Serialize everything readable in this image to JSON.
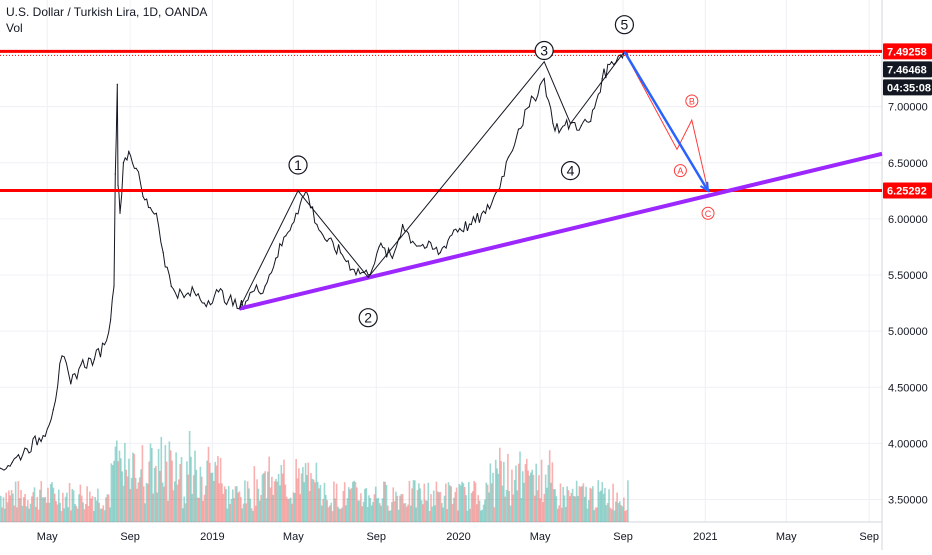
{
  "legend": {
    "symbol": "U.S. Dollar / Turkish Lira, 1D, OANDA",
    "volume": "Vol"
  },
  "colors": {
    "up": "#26a69a",
    "down": "#ef5350",
    "price_line": "#131722",
    "resistance": "#ff0000",
    "trendline": "#9c27ff",
    "projection": "#2962ff",
    "wave_abc": "#ff3b3b",
    "grid": "#eef0f4"
  },
  "price_labels": [
    {
      "text": "7.49258",
      "value": 7.49258,
      "style": "red"
    },
    {
      "text": "7.46468",
      "value": 7.46468,
      "style": "dark"
    },
    {
      "text": "04:35:08",
      "value": 7.33,
      "style": "dark"
    },
    {
      "text": "6.25292",
      "value": 6.25292,
      "style": "red"
    }
  ],
  "chart_data": {
    "type": "line",
    "title": "U.S. Dollar / Turkish Lira, 1D, OANDA",
    "ylim": [
      3.3,
      7.95
    ],
    "y_ticks": [
      "7.00000",
      "6.50000",
      "6.00000",
      "5.50000",
      "5.00000",
      "4.50000",
      "4.00000",
      "3.50000"
    ],
    "y_tick_values": [
      7.0,
      6.5,
      6.0,
      5.5,
      5.0,
      4.5,
      4.0,
      3.5
    ],
    "x_ticks": [
      "May",
      "Sep",
      "2019",
      "May",
      "Sep",
      "2020",
      "May",
      "Sep",
      "2021",
      "May",
      "Sep"
    ],
    "x_tick_dates": [
      "2018-05-01",
      "2018-09-01",
      "2019-01-01",
      "2019-05-01",
      "2019-09-01",
      "2020-01-01",
      "2020-05-01",
      "2020-09-01",
      "2021-01-01",
      "2021-05-01",
      "2021-09-01"
    ],
    "x_range": [
      "2018-02-20",
      "2021-09-20"
    ],
    "series": [
      {
        "values": [
          [
            "2018-02-20",
            3.78
          ],
          [
            "2018-03-10",
            3.83
          ],
          [
            "2018-04-01",
            3.95
          ],
          [
            "2018-04-25",
            4.07
          ],
          [
            "2018-05-10",
            4.3
          ],
          [
            "2018-05-23",
            4.78
          ],
          [
            "2018-06-05",
            4.53
          ],
          [
            "2018-06-20",
            4.7
          ],
          [
            "2018-07-10",
            4.75
          ],
          [
            "2018-07-25",
            4.88
          ],
          [
            "2018-08-03",
            5.1
          ],
          [
            "2018-08-08",
            5.4
          ],
          [
            "2018-08-10",
            6.4
          ],
          [
            "2018-08-13",
            7.2
          ],
          [
            "2018-08-14",
            6.3
          ],
          [
            "2018-08-17",
            6.05
          ],
          [
            "2018-08-22",
            6.5
          ],
          [
            "2018-08-30",
            6.6
          ],
          [
            "2018-09-10",
            6.45
          ],
          [
            "2018-09-20",
            6.2
          ],
          [
            "2018-10-01",
            6.1
          ],
          [
            "2018-10-10",
            6.05
          ],
          [
            "2018-10-20",
            5.7
          ],
          [
            "2018-11-01",
            5.4
          ],
          [
            "2018-11-20",
            5.3
          ],
          [
            "2018-12-05",
            5.35
          ],
          [
            "2018-12-20",
            5.25
          ],
          [
            "2019-01-10",
            5.35
          ],
          [
            "2019-01-25",
            5.28
          ],
          [
            "2019-02-10",
            5.2
          ],
          [
            "2019-03-01",
            5.35
          ],
          [
            "2019-03-20",
            5.4
          ],
          [
            "2019-04-05",
            5.65
          ],
          [
            "2019-04-20",
            5.85
          ],
          [
            "2019-05-05",
            6.05
          ],
          [
            "2019-05-20",
            6.25
          ],
          [
            "2019-06-05",
            5.95
          ],
          [
            "2019-06-20",
            5.8
          ],
          [
            "2019-07-10",
            5.7
          ],
          [
            "2019-07-30",
            5.55
          ],
          [
            "2019-08-20",
            5.5
          ],
          [
            "2019-09-05",
            5.75
          ],
          [
            "2019-09-25",
            5.65
          ],
          [
            "2019-10-10",
            5.95
          ],
          [
            "2019-10-25",
            5.8
          ],
          [
            "2019-11-15",
            5.75
          ],
          [
            "2019-12-05",
            5.7
          ],
          [
            "2019-12-25",
            5.9
          ],
          [
            "2020-01-20",
            5.95
          ],
          [
            "2020-02-10",
            6.05
          ],
          [
            "2020-02-28",
            6.25
          ],
          [
            "2020-03-15",
            6.55
          ],
          [
            "2020-03-30",
            6.8
          ],
          [
            "2020-04-15",
            7.0
          ],
          [
            "2020-05-07",
            7.25
          ],
          [
            "2020-05-20",
            6.85
          ],
          [
            "2020-06-01",
            6.8
          ],
          [
            "2020-06-15",
            6.85
          ],
          [
            "2020-07-01",
            6.83
          ],
          [
            "2020-07-15",
            6.87
          ],
          [
            "2020-08-01",
            7.25
          ],
          [
            "2020-08-15",
            7.4
          ],
          [
            "2020-08-25",
            7.45
          ],
          [
            "2020-09-03",
            7.49
          ],
          [
            "2020-09-08",
            7.46
          ]
        ]
      }
    ],
    "annotations": {
      "waves": [
        {
          "label": "1",
          "date": "2019-05-08",
          "price": 6.48,
          "shape": "circle"
        },
        {
          "label": "2",
          "date": "2019-08-20",
          "price": 5.12,
          "shape": "circle"
        },
        {
          "label": "3",
          "date": "2020-05-07",
          "price": 7.5,
          "shape": "circle"
        },
        {
          "label": "4",
          "date": "2020-06-15",
          "price": 6.43,
          "shape": "circle"
        },
        {
          "label": "5",
          "date": "2020-09-03",
          "price": 7.73,
          "shape": "circle"
        },
        {
          "label": "A",
          "date": "2020-11-25",
          "price": 6.43,
          "shape": "small-red"
        },
        {
          "label": "B",
          "date": "2020-12-12",
          "price": 7.05,
          "shape": "small-red"
        },
        {
          "label": "C",
          "date": "2021-01-05",
          "price": 6.05,
          "shape": "small-red"
        }
      ],
      "impulse_path": [
        [
          "2019-02-10",
          5.2
        ],
        [
          "2019-05-08",
          6.25
        ],
        [
          "2019-08-20",
          5.48
        ],
        [
          "2020-05-07",
          7.4
        ],
        [
          "2020-06-15",
          6.85
        ],
        [
          "2020-09-03",
          7.49
        ]
      ],
      "abc_path": [
        [
          "2020-09-03",
          7.49
        ],
        [
          "2020-11-20",
          6.62
        ],
        [
          "2020-12-12",
          6.88
        ],
        [
          "2021-01-05",
          6.25
        ]
      ],
      "blue_arrow": [
        [
          "2020-09-03",
          7.49
        ],
        [
          "2021-01-05",
          6.25
        ]
      ],
      "trendline": [
        [
          "2019-02-10",
          5.2
        ],
        [
          "2021-09-20",
          6.58
        ]
      ],
      "resistance_levels": [
        7.49258,
        6.25292
      ]
    },
    "volume": {
      "approx_daily_max": 1.0,
      "note_bars_shown": true
    }
  }
}
